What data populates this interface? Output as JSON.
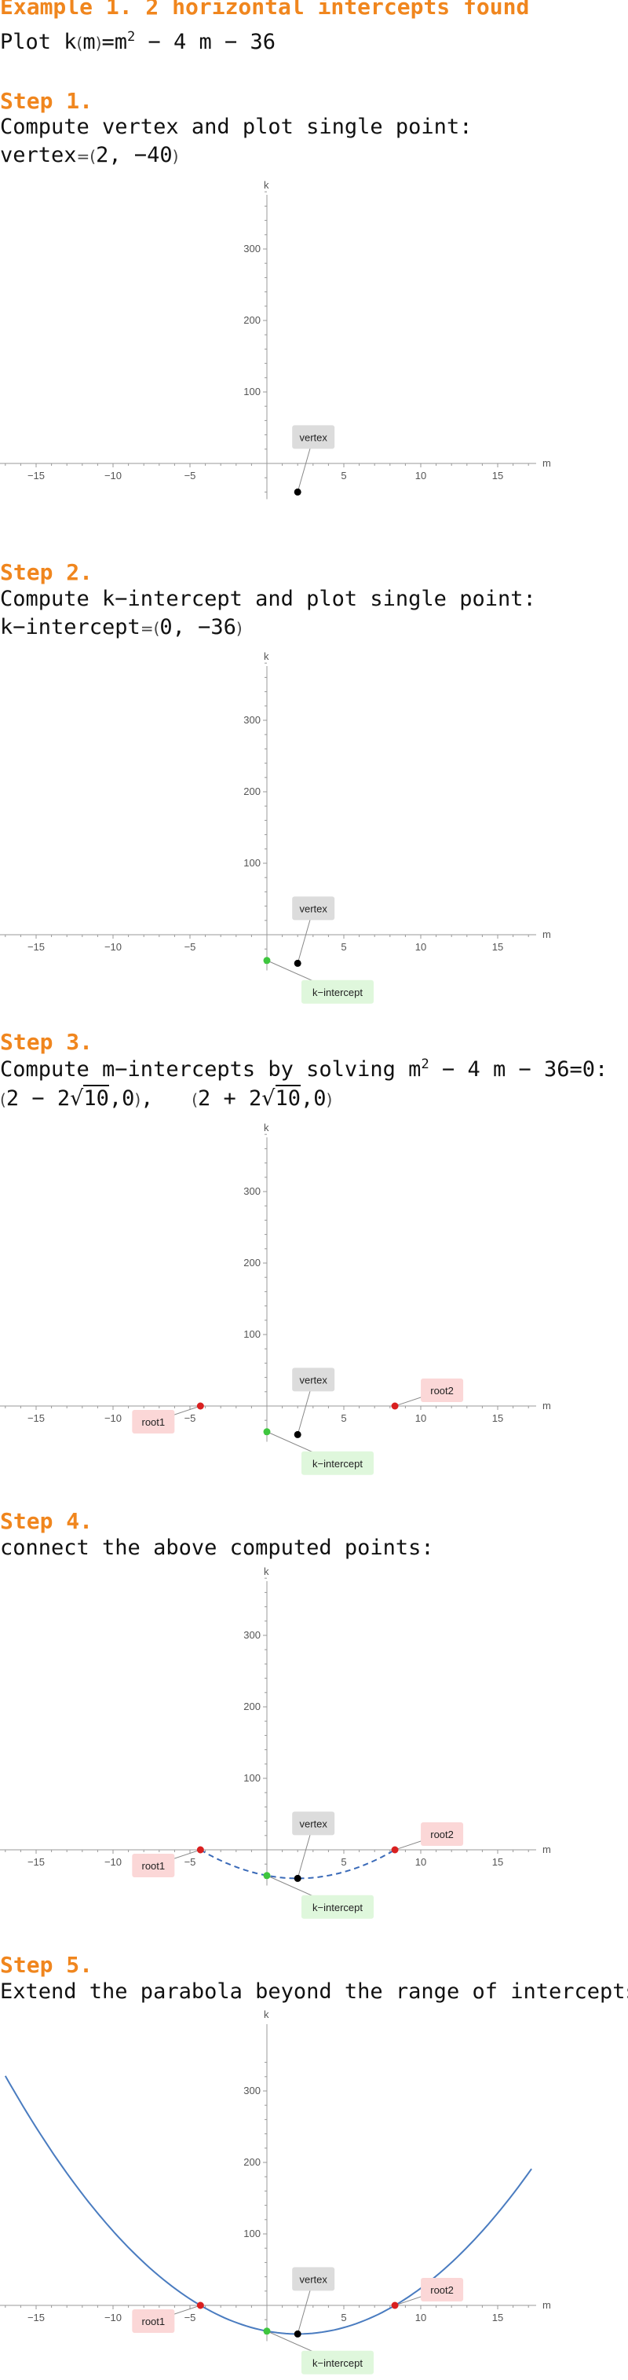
{
  "title": "Example 1. 2 horizontal intercepts found",
  "plot_prefix": "Plot k",
  "plot_m": "m",
  "plot_eq": "=m",
  "plot_exp": "2",
  "plot_rest": " − 4 m − 36",
  "step1": {
    "heading": "Step 1.",
    "text": "Compute vertex and plot single point:",
    "value_label": "vertex",
    "value": "2, −40"
  },
  "step2": {
    "heading": "Step 2.",
    "text": "Compute k−intercept and plot single point:",
    "value_label": "k−intercept",
    "value": "0, −36"
  },
  "step3": {
    "heading": "Step 3.",
    "text_pre": "Compute m−intercepts by solving m",
    "text_exp": "2",
    "text_post": " − 4 m − 36=0:",
    "root1_a": "2 − 2",
    "root1_rad": "10",
    "root1_b": ",0",
    "root2_a": "2 + 2",
    "root2_rad": "10",
    "root2_b": ",0"
  },
  "step4": {
    "heading": "Step 4.",
    "text": "connect the above computed points:"
  },
  "step5": {
    "heading": "Step 5.",
    "text": "Extend the parabola beyond the range of intercepts"
  },
  "chart_data": [
    {
      "type": "scatter",
      "xlabel": "m",
      "ylabel": "k",
      "xlim": [
        -17.5,
        17.5
      ],
      "ylim": [
        -50,
        390
      ],
      "x_ticks": [
        -15,
        -10,
        -5,
        5,
        10,
        15
      ],
      "y_ticks": [
        100,
        200,
        300
      ],
      "points": [
        {
          "name": "vertex",
          "x": 2,
          "y": -40
        }
      ],
      "colors": {
        "vertex": "#000000"
      }
    },
    {
      "type": "scatter",
      "xlabel": "m",
      "ylabel": "k",
      "xlim": [
        -17.5,
        17.5
      ],
      "ylim": [
        -50,
        390
      ],
      "x_ticks": [
        -15,
        -10,
        -5,
        5,
        10,
        15
      ],
      "y_ticks": [
        100,
        200,
        300
      ],
      "points": [
        {
          "name": "vertex",
          "x": 2,
          "y": -40
        },
        {
          "name": "k-intercept",
          "x": 0,
          "y": -36
        }
      ],
      "colors": {
        "vertex": "#000000",
        "k-intercept": "#3ec63e"
      }
    },
    {
      "type": "scatter",
      "xlabel": "m",
      "ylabel": "k",
      "xlim": [
        -17.5,
        17.5
      ],
      "ylim": [
        -50,
        390
      ],
      "x_ticks": [
        -15,
        -10,
        -5,
        5,
        10,
        15
      ],
      "y_ticks": [
        100,
        200,
        300
      ],
      "points": [
        {
          "name": "vertex",
          "x": 2,
          "y": -40
        },
        {
          "name": "k-intercept",
          "x": 0,
          "y": -36
        },
        {
          "name": "root1",
          "x": -4.32,
          "y": 0
        },
        {
          "name": "root2",
          "x": 8.32,
          "y": 0
        }
      ],
      "colors": {
        "vertex": "#000000",
        "k-intercept": "#3ec63e",
        "root1": "#d92020",
        "root2": "#d92020"
      }
    },
    {
      "type": "line",
      "xlabel": "m",
      "ylabel": "k",
      "xlim": [
        -17.5,
        17.5
      ],
      "ylim": [
        -50,
        390
      ],
      "x_ticks": [
        -15,
        -10,
        -5,
        5,
        10,
        15
      ],
      "y_ticks": [
        100,
        200,
        300
      ],
      "points": [
        {
          "name": "vertex",
          "x": 2,
          "y": -40
        },
        {
          "name": "k-intercept",
          "x": 0,
          "y": -36
        },
        {
          "name": "root1",
          "x": -4.32,
          "y": 0
        },
        {
          "name": "root2",
          "x": 8.32,
          "y": 0
        }
      ],
      "curve": {
        "function": "m^2 - 4m - 36",
        "domain": [
          -4.32,
          8.32
        ],
        "style": "dashed",
        "color": "#3a6ab8"
      },
      "colors": {
        "vertex": "#000000",
        "k-intercept": "#3ec63e",
        "root1": "#d92020",
        "root2": "#d92020"
      }
    },
    {
      "type": "line",
      "xlabel": "m",
      "ylabel": "k",
      "xlim": [
        -17.5,
        17.5
      ],
      "ylim": [
        -50,
        340
      ],
      "x_ticks": [
        -15,
        -10,
        -5,
        5,
        10,
        15
      ],
      "y_ticks": [
        100,
        200,
        300
      ],
      "points": [
        {
          "name": "vertex",
          "x": 2,
          "y": -40
        },
        {
          "name": "k-intercept",
          "x": 0,
          "y": -36
        },
        {
          "name": "root1",
          "x": -4.32,
          "y": 0
        },
        {
          "name": "root2",
          "x": 8.32,
          "y": 0
        }
      ],
      "curve": {
        "function": "m^2 - 4m - 36",
        "domain": [
          -17,
          17.2
        ],
        "style": "solid",
        "color": "#4a7cc0"
      },
      "colors": {
        "vertex": "#000000",
        "k-intercept": "#3ec63e",
        "root1": "#d92020",
        "root2": "#d92020"
      }
    }
  ]
}
